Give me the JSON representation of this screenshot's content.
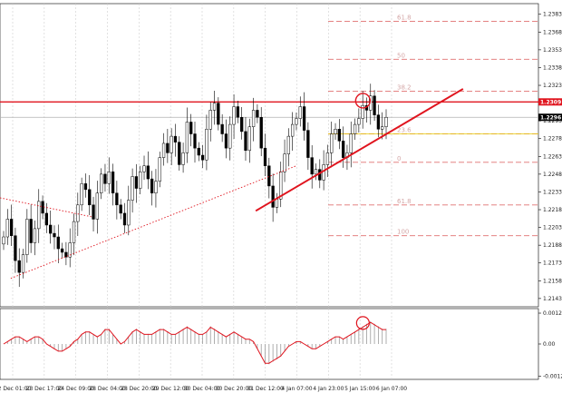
{
  "chart_data": [
    {
      "type": "candlestick",
      "symbol": "",
      "timeframe": "H1",
      "yticks": [
        1.2383,
        1.2368,
        1.2353,
        1.2338,
        1.2323,
        1.2308,
        1.2293,
        1.2278,
        1.2263,
        1.2248,
        1.2233,
        1.2218,
        1.2203,
        1.2188,
        1.2173,
        1.2158,
        1.2143
      ],
      "ylim": [
        1.2136,
        1.2392
      ],
      "xticks": [
        "22 Dec 01:00",
        "23 Dec 17:00",
        "24 Dec 09:00",
        "28 Dec 04:00",
        "28 Dec 20:00",
        "29 Dec 12:00",
        "30 Dec 04:00",
        "30 Dec 20:00",
        "31 Dec 12:00",
        "4 Jan 07:00",
        "4 Jan 23:00",
        "5 Jan 15:00",
        "6 Jan 07:00"
      ],
      "price_labels": [
        {
          "text": "1.2309",
          "value": 1.2309,
          "color": "#e0141e"
        },
        {
          "text": "1.2296",
          "value": 1.2296,
          "color": "#000000"
        }
      ],
      "horizontal_levels": [
        {
          "name": "resistance",
          "value": 1.2309,
          "color": "#e0141e"
        },
        {
          "name": "bid",
          "value": 1.2296,
          "color": "#b0b0b0"
        },
        {
          "name": "fibo-yellow",
          "value": 1.2282,
          "color": "#e6c800"
        }
      ],
      "fibo_levels": [
        {
          "value": 1.2377,
          "label": "61.8"
        },
        {
          "value": 1.2345,
          "label": "50"
        },
        {
          "value": 1.2318,
          "label": "38.2"
        },
        {
          "value": 1.2282,
          "label": "23.6"
        },
        {
          "value": 1.2258,
          "label": "0"
        },
        {
          "value": 1.2222,
          "label": "61.8"
        },
        {
          "value": 1.2196,
          "label": "100"
        }
      ],
      "trendlines": [
        {
          "name": "uptrend-solid",
          "color": "#e0141e",
          "style": "solid",
          "points": [
            [
              0.475,
              1.2217
            ],
            [
              0.86,
              1.232
            ]
          ]
        },
        {
          "name": "channel-dotted",
          "color": "#e0141e",
          "style": "dotted",
          "points": [
            [
              0.0,
              1.2228
            ],
            [
              0.17,
              1.2212
            ]
          ]
        },
        {
          "name": "uptrend-dotted",
          "color": "#e0141e",
          "style": "dotted",
          "points": [
            [
              0.02,
              1.216
            ],
            [
              0.55,
              1.2255
            ]
          ]
        }
      ],
      "highlight_circle": {
        "x": 0.674,
        "value": 1.231
      },
      "series": [
        {
          "name": "",
          "close": [
            1.2195,
            1.221,
            1.2196,
            1.2175,
            1.2165,
            1.218,
            1.221,
            1.219,
            1.2202,
            1.2225,
            1.2215,
            1.2205,
            1.2198,
            1.2195,
            1.2185,
            1.2182,
            1.2178,
            1.219,
            1.2208,
            1.2222,
            1.224,
            1.2235,
            1.2222,
            1.221,
            1.2232,
            1.2248,
            1.224,
            1.225,
            1.2232,
            1.2222,
            1.2215,
            1.2205,
            1.2226,
            1.2246,
            1.2236,
            1.225,
            1.2255,
            1.2244,
            1.2232,
            1.2242,
            1.2262,
            1.2274,
            1.2266,
            1.228,
            1.2275,
            1.2256,
            1.2266,
            1.2292,
            1.2282,
            1.227,
            1.2264,
            1.226,
            1.2286,
            1.2302,
            1.2308,
            1.229,
            1.2282,
            1.227,
            1.229,
            1.2305,
            1.2296,
            1.2284,
            1.2268,
            1.2288,
            1.2302,
            1.2296,
            1.227,
            1.2255,
            1.2238,
            1.222,
            1.2227,
            1.225,
            1.2265,
            1.228,
            1.229,
            1.2295,
            1.2305,
            1.2285,
            1.2262,
            1.2248,
            1.2252,
            1.2243,
            1.2256,
            1.2266,
            1.2282,
            1.2286,
            1.2276,
            1.2262,
            1.2266,
            1.2282,
            1.229,
            1.2295,
            1.2306,
            1.2302,
            1.2314,
            1.2298,
            1.2286,
            1.2288,
            1.2296
          ]
        }
      ]
    },
    {
      "type": "histogram",
      "indicator": "MACD",
      "yticks": [
        0.00122,
        0.0,
        -0.00128
      ],
      "ytick_labels": [
        "0.00122",
        "0.00",
        "-0.00128"
      ],
      "ylim": [
        -0.0014,
        0.0014
      ],
      "highlight_circle": {
        "x": 0.674,
        "value": 0.00083
      },
      "values": [
        0.0,
        0.0001,
        0.0002,
        0.0003,
        0.0003,
        0.0002,
        0.0001,
        0.0002,
        0.0003,
        0.0003,
        0.0002,
        0.0,
        -0.0001,
        -0.0002,
        -0.0003,
        -0.0003,
        -0.0002,
        -0.0001,
        0.0001,
        0.0002,
        0.0004,
        0.0005,
        0.0005,
        0.0004,
        0.0003,
        0.0004,
        0.0006,
        0.0006,
        0.0004,
        0.0002,
        0.0,
        0.0001,
        0.0003,
        0.0005,
        0.0006,
        0.0005,
        0.0004,
        0.0004,
        0.0004,
        0.0005,
        0.0006,
        0.0006,
        0.0005,
        0.0004,
        0.0004,
        0.0005,
        0.0006,
        0.0007,
        0.0006,
        0.0005,
        0.0004,
        0.0004,
        0.0005,
        0.0007,
        0.0006,
        0.0005,
        0.0004,
        0.0003,
        0.0004,
        0.0005,
        0.0004,
        0.0003,
        0.0002,
        0.0002,
        0.0001,
        -0.0002,
        -0.0005,
        -0.0008,
        -0.0008,
        -0.0007,
        -0.0006,
        -0.0005,
        -0.0003,
        -0.0001,
        0.0,
        0.0001,
        0.0001,
        0.0,
        -0.0001,
        -0.0002,
        -0.0002,
        -0.0001,
        0.0,
        0.0001,
        0.0002,
        0.0003,
        0.0003,
        0.0002,
        0.0003,
        0.0004,
        0.0005,
        0.0006,
        0.0007,
        0.0008,
        0.0009,
        0.0008,
        0.0007,
        0.0006,
        0.0006
      ],
      "signal_color": "#e0141e"
    }
  ]
}
